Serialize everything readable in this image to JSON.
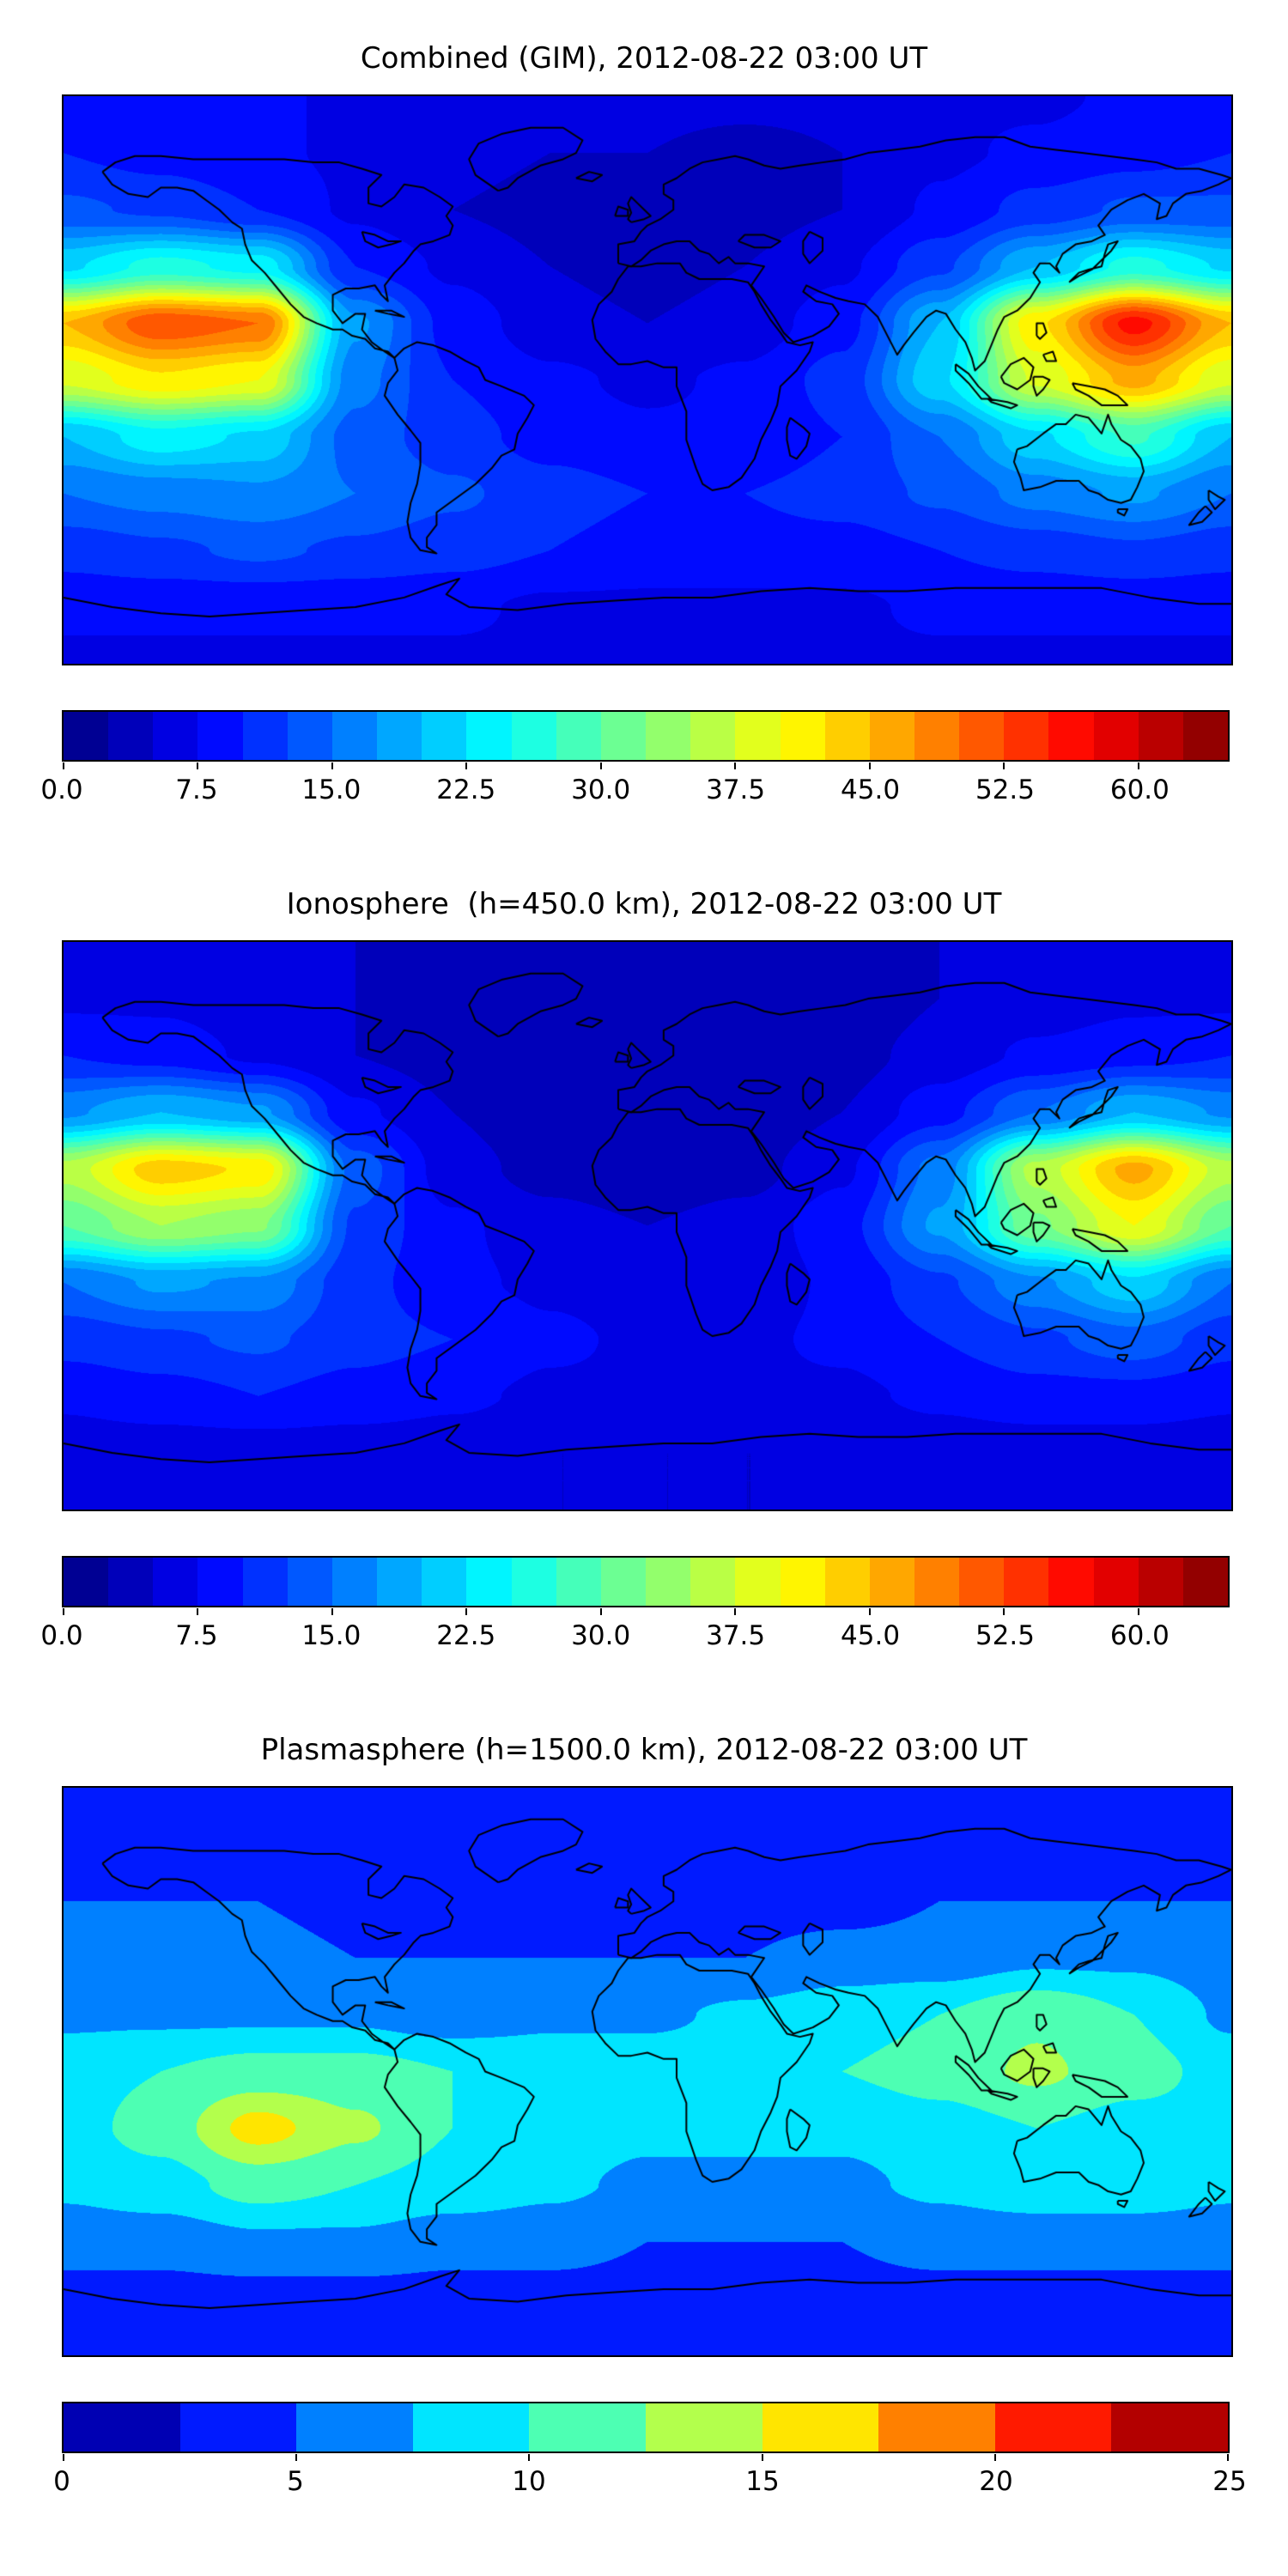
{
  "colors": {
    "background": "#ffffff",
    "coastline": "#000000",
    "frame": "#000000",
    "colormap_low": "#00007f",
    "colormap_high": "#7f0000"
  },
  "chart_data": [
    {
      "type": "heatmap",
      "title": "Combined (GIM), 2012-08-22 03:00 UT",
      "colormap": "jet",
      "projection": "equirectangular-world-map",
      "xlabel": "",
      "ylabel": "",
      "lon": [
        -180,
        -150,
        -120,
        -90,
        -60,
        -30,
        0,
        30,
        60,
        90,
        120,
        150,
        180
      ],
      "lat": [
        90,
        72,
        54,
        36,
        18,
        0,
        -18,
        -36,
        -54,
        -72,
        -90
      ],
      "values": [
        [
          8,
          8,
          8,
          7,
          7,
          6,
          6,
          6,
          6,
          7,
          7,
          8,
          8
        ],
        [
          10,
          9,
          8,
          7,
          6,
          5,
          5,
          4,
          5,
          7,
          8,
          9,
          10
        ],
        [
          13,
          12,
          10,
          7,
          5,
          4,
          4,
          4,
          5,
          8,
          11,
          13,
          13
        ],
        [
          22,
          26,
          24,
          10,
          7,
          5,
          4,
          5,
          7,
          12,
          20,
          26,
          22
        ],
        [
          45,
          52,
          50,
          18,
          9,
          6,
          5,
          6,
          9,
          20,
          42,
          56,
          45
        ],
        [
          38,
          42,
          40,
          16,
          10,
          8,
          7,
          8,
          11,
          22,
          38,
          46,
          38
        ],
        [
          20,
          24,
          22,
          14,
          11,
          9,
          8,
          8,
          10,
          15,
          22,
          28,
          20
        ],
        [
          15,
          16,
          17,
          15,
          13,
          11,
          10,
          10,
          11,
          13,
          16,
          18,
          15
        ],
        [
          11,
          12,
          13,
          12,
          11,
          10,
          9,
          9,
          9,
          10,
          11,
          12,
          11
        ],
        [
          8,
          8,
          8,
          8,
          8,
          7,
          7,
          7,
          7,
          8,
          8,
          8,
          8
        ],
        [
          7,
          7,
          7,
          7,
          7,
          7,
          7,
          7,
          7,
          7,
          7,
          7,
          7
        ]
      ],
      "levels": {
        "min": 0,
        "max": 65,
        "step": 2.5
      },
      "colorbar": {
        "tick_values": [
          0,
          7.5,
          15,
          22.5,
          30,
          37.5,
          45,
          52.5,
          60
        ],
        "tick_labels": [
          "0.0",
          "7.5",
          "15.0",
          "22.5",
          "30.0",
          "37.5",
          "45.0",
          "52.5",
          "60.0"
        ]
      }
    },
    {
      "type": "heatmap",
      "title": "Ionosphere  (h=450.0 km), 2012-08-22 03:00 UT",
      "colormap": "jet",
      "projection": "equirectangular-world-map",
      "xlabel": "",
      "ylabel": "",
      "lon": [
        -180,
        -150,
        -120,
        -90,
        -60,
        -30,
        0,
        30,
        60,
        90,
        120,
        150,
        180
      ],
      "lat": [
        90,
        72,
        54,
        36,
        18,
        0,
        -18,
        -36,
        -54,
        -72,
        -90
      ],
      "values": [
        [
          6,
          6,
          5,
          5,
          4,
          4,
          4,
          4,
          4,
          5,
          5,
          6,
          6
        ],
        [
          7,
          7,
          6,
          5,
          4,
          3,
          3,
          3,
          3,
          5,
          6,
          7,
          7
        ],
        [
          10,
          9,
          7,
          5,
          4,
          3,
          3,
          3,
          4,
          6,
          8,
          9,
          10
        ],
        [
          17,
          20,
          18,
          8,
          5,
          3,
          3,
          3,
          5,
          9,
          15,
          20,
          17
        ],
        [
          36,
          44,
          42,
          14,
          6,
          4,
          3,
          4,
          7,
          16,
          36,
          46,
          36
        ],
        [
          30,
          35,
          33,
          12,
          8,
          6,
          5,
          6,
          9,
          18,
          32,
          40,
          30
        ],
        [
          15,
          18,
          17,
          11,
          8,
          7,
          6,
          6,
          8,
          12,
          17,
          22,
          15
        ],
        [
          11,
          12,
          13,
          11,
          10,
          8,
          7,
          7,
          8,
          10,
          12,
          14,
          11
        ],
        [
          8,
          9,
          10,
          9,
          8,
          7,
          7,
          7,
          7,
          8,
          9,
          9,
          8
        ],
        [
          6,
          6,
          6,
          6,
          6,
          5,
          5,
          5,
          5,
          6,
          6,
          6,
          6
        ],
        [
          5,
          5,
          5,
          5,
          5,
          5,
          5,
          5,
          5,
          5,
          5,
          5,
          5
        ]
      ],
      "levels": {
        "min": 0,
        "max": 65,
        "step": 2.5
      },
      "colorbar": {
        "tick_values": [
          0,
          7.5,
          15,
          22.5,
          30,
          37.5,
          45,
          52.5,
          60
        ],
        "tick_labels": [
          "0.0",
          "7.5",
          "15.0",
          "22.5",
          "30.0",
          "37.5",
          "45.0",
          "52.5",
          "60.0"
        ]
      }
    },
    {
      "type": "heatmap",
      "title": "Plasmasphere (h=1500.0 km), 2012-08-22 03:00 UT",
      "colormap": "jet",
      "projection": "equirectangular-world-map",
      "xlabel": "",
      "ylabel": "",
      "lon": [
        -180,
        -150,
        -120,
        -90,
        -60,
        -30,
        0,
        30,
        60,
        90,
        120,
        150,
        180
      ],
      "lat": [
        90,
        72,
        54,
        36,
        18,
        0,
        -18,
        -36,
        -54,
        -72,
        -90
      ],
      "values": [
        [
          3,
          3,
          3,
          3,
          3,
          3,
          3,
          3,
          3,
          3,
          3,
          3,
          3
        ],
        [
          4,
          4,
          4,
          3,
          3,
          3,
          3,
          3,
          3,
          3,
          4,
          4,
          4
        ],
        [
          5,
          5,
          5,
          4,
          4,
          4,
          4,
          4,
          4,
          5,
          5,
          5,
          5
        ],
        [
          6,
          6,
          6,
          5,
          5,
          5,
          5,
          5,
          6,
          6,
          7,
          7,
          6
        ],
        [
          7,
          7,
          7,
          7,
          6,
          7,
          7,
          8,
          9,
          10,
          12,
          10,
          7
        ],
        [
          9,
          10,
          11,
          11,
          10,
          9,
          9,
          9,
          10,
          11,
          13,
          11,
          9
        ],
        [
          9,
          11,
          16,
          13,
          10,
          9,
          8,
          8,
          8,
          9,
          10,
          9,
          9
        ],
        [
          8,
          9,
          11,
          10,
          9,
          8,
          7,
          7,
          7,
          8,
          9,
          9,
          8
        ],
        [
          6,
          6,
          7,
          7,
          6,
          6,
          5,
          5,
          5,
          6,
          6,
          6,
          6
        ],
        [
          4,
          4,
          4,
          4,
          4,
          4,
          4,
          4,
          4,
          4,
          4,
          4,
          4
        ],
        [
          3,
          3,
          3,
          3,
          3,
          3,
          3,
          3,
          3,
          3,
          3,
          3,
          3
        ]
      ],
      "levels": {
        "min": 0,
        "max": 25,
        "step": 2.5
      },
      "colorbar": {
        "tick_values": [
          0,
          5,
          10,
          15,
          20,
          25
        ],
        "tick_labels": [
          "0",
          "5",
          "10",
          "15",
          "20",
          "25"
        ]
      }
    }
  ]
}
